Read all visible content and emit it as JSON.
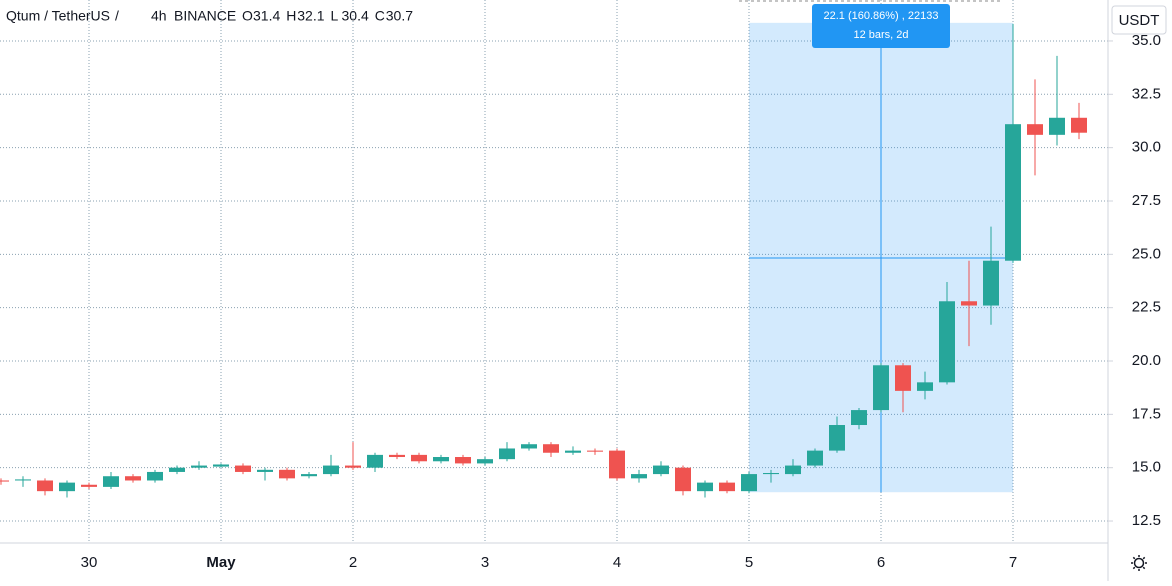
{
  "chart_data": {
    "type": "candlestick",
    "symbol": "Qtum / TetherUS",
    "interval": "4h",
    "exchange": "BINANCE",
    "currency": "USDT",
    "ohlc_legend": [
      {
        "label": "O",
        "value": 31.4
      },
      {
        "label": "H",
        "value": 32.1
      },
      {
        "label": "L",
        "value": 30.4
      },
      {
        "label": "C",
        "value": 30.7
      }
    ],
    "categories": [
      null,
      null,
      null,
      null,
      "30",
      null,
      null,
      null,
      null,
      null,
      "May",
      null,
      null,
      null,
      null,
      null,
      "2",
      null,
      null,
      null,
      null,
      null,
      "3",
      null,
      null,
      null,
      null,
      null,
      "4",
      null,
      null,
      null,
      null,
      null,
      "5",
      null,
      null,
      null,
      null,
      null,
      "6",
      null,
      null,
      null,
      null,
      null,
      "7",
      null,
      null,
      null
    ],
    "open": [
      14.4,
      14.4,
      14.4,
      13.9,
      14.2,
      14.1,
      14.6,
      14.4,
      14.8,
      15.0,
      15.05,
      15.1,
      14.8,
      14.9,
      14.6,
      14.7,
      15.1,
      15.0,
      15.6,
      15.6,
      15.3,
      15.5,
      15.2,
      15.4,
      15.9,
      16.1,
      15.7,
      15.8,
      15.8,
      14.5,
      14.7,
      15.0,
      13.9,
      14.3,
      13.9,
      14.7,
      14.7,
      15.1,
      15.8,
      17.0,
      17.7,
      19.8,
      18.6,
      19.0,
      22.8,
      22.6,
      24.7,
      31.1,
      30.6,
      31.4
    ],
    "high": [
      14.5,
      14.6,
      14.5,
      14.4,
      14.3,
      14.8,
      14.7,
      14.9,
      15.1,
      15.3,
      15.2,
      15.2,
      15.0,
      15.0,
      14.8,
      15.6,
      16.2,
      15.7,
      15.7,
      15.7,
      15.6,
      15.6,
      15.5,
      16.2,
      16.2,
      16.2,
      16.0,
      15.9,
      15.9,
      14.9,
      15.3,
      15.1,
      14.4,
      14.4,
      14.8,
      14.9,
      15.4,
      15.9,
      17.4,
      17.8,
      19.9,
      19.9,
      19.5,
      23.7,
      24.7,
      26.3,
      35.8,
      33.2,
      34.3,
      32.1
    ],
    "low": [
      14.2,
      14.1,
      13.7,
      13.6,
      14.0,
      14.0,
      14.3,
      14.3,
      14.7,
      14.9,
      15.0,
      14.7,
      14.4,
      14.4,
      14.5,
      14.6,
      14.9,
      14.8,
      15.4,
      15.2,
      15.2,
      15.1,
      15.1,
      15.3,
      15.8,
      15.5,
      15.6,
      15.6,
      14.4,
      14.3,
      14.6,
      13.7,
      13.6,
      13.8,
      13.8,
      14.3,
      14.6,
      15.0,
      15.7,
      16.8,
      17.6,
      17.6,
      18.2,
      18.9,
      20.7,
      21.7,
      24.6,
      28.7,
      30.1,
      30.4
    ],
    "close": [
      14.35,
      14.45,
      13.9,
      14.3,
      14.1,
      14.6,
      14.4,
      14.8,
      15.0,
      15.1,
      15.15,
      14.8,
      14.9,
      14.5,
      14.7,
      15.1,
      15.0,
      15.6,
      15.5,
      15.3,
      15.5,
      15.2,
      15.4,
      15.9,
      16.1,
      15.7,
      15.8,
      15.75,
      14.5,
      14.7,
      15.1,
      13.9,
      14.3,
      13.9,
      14.7,
      14.75,
      15.1,
      15.8,
      17.0,
      17.7,
      19.8,
      18.6,
      19.0,
      22.8,
      22.6,
      24.7,
      31.1,
      30.6,
      31.4,
      30.7
    ],
    "up_color": "#26a69a",
    "down_color": "#ef5350",
    "ylim": [
      11.47,
      36.92
    ],
    "yticks": [
      12.5,
      {
        "value": 15,
        "label": "15.0"
      },
      17.5,
      {
        "value": 20,
        "label": "20.0"
      },
      22.5,
      {
        "value": 25,
        "label": "25.0"
      },
      27.5,
      {
        "value": 30,
        "label": "30.0"
      },
      32.5,
      {
        "value": 35,
        "label": "35.0"
      }
    ],
    "grid": true,
    "measure": {
      "start_index": 34,
      "end_index": 46,
      "mid_index": 40,
      "low": 13.85,
      "high": 35.85,
      "level": 24.83,
      "label": "22.1 (160.86%) , 22133",
      "sublabel": "12 bars, 2d",
      "color": "#2196f3"
    }
  }
}
